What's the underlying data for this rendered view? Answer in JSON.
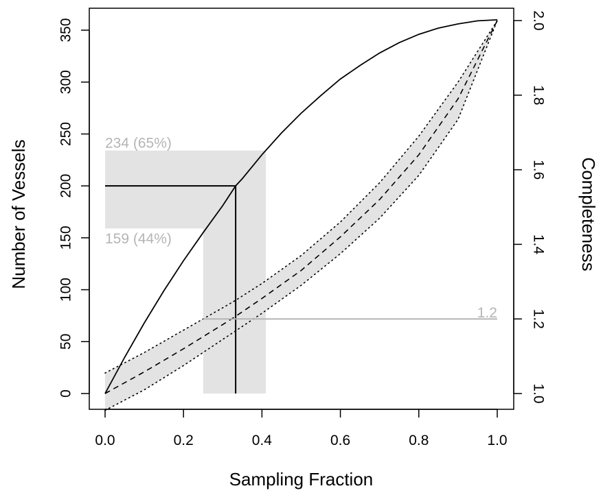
{
  "chart_data": {
    "type": "line",
    "xlabel": "Sampling Fraction",
    "ylabel": "Number of Vessels",
    "y2label": "Completeness",
    "xlim": [
      0,
      1
    ],
    "ylim": [
      0,
      360
    ],
    "y2lim": [
      1.0,
      2.0
    ],
    "x_ticks": [
      "0.0",
      "0.2",
      "0.4",
      "0.6",
      "0.8",
      "1.0"
    ],
    "y_ticks": [
      "0",
      "50",
      "100",
      "150",
      "200",
      "250",
      "300",
      "350"
    ],
    "y2_ticks": [
      "1.0",
      "1.2",
      "1.4",
      "1.6",
      "1.8",
      "2.0"
    ],
    "grid": false,
    "series": [
      {
        "style": "solid",
        "axis": "left",
        "x": [
          0,
          0.05,
          0.1,
          0.15,
          0.2,
          0.25,
          0.3,
          0.333,
          0.35,
          0.4,
          0.45,
          0.5,
          0.55,
          0.6,
          0.65,
          0.7,
          0.75,
          0.8,
          0.85,
          0.9,
          0.95,
          1.0
        ],
        "y": [
          0,
          35,
          68,
          99,
          128,
          155,
          181,
          200,
          207,
          230,
          251,
          270,
          287,
          303,
          316,
          328,
          338,
          346,
          352,
          356,
          359,
          360
        ]
      },
      {
        "style": "dashed",
        "axis": "right",
        "x": [
          0,
          0.1,
          0.2,
          0.3,
          0.333,
          0.4,
          0.5,
          0.6,
          0.7,
          0.8,
          0.9,
          1.0
        ],
        "y": [
          1.0,
          1.058,
          1.12,
          1.185,
          1.207,
          1.255,
          1.33,
          1.42,
          1.52,
          1.64,
          1.79,
          2.0
        ],
        "lower": [
          0.955,
          1.01,
          1.075,
          1.145,
          1.168,
          1.215,
          1.29,
          1.375,
          1.47,
          1.585,
          1.735,
          2.0
        ],
        "upper": [
          1.055,
          1.11,
          1.17,
          1.23,
          1.25,
          1.295,
          1.37,
          1.46,
          1.565,
          1.69,
          1.835,
          2.0
        ]
      }
    ],
    "highlight": {
      "x": 0.333,
      "y": 200,
      "x_range": [
        0.25,
        0.41
      ],
      "y_range": [
        159,
        234
      ],
      "completeness": 1.2
    },
    "annotations": {
      "upper": "234 (65%)",
      "lower": "159 (44%)",
      "completeness_label": "1.2"
    }
  }
}
